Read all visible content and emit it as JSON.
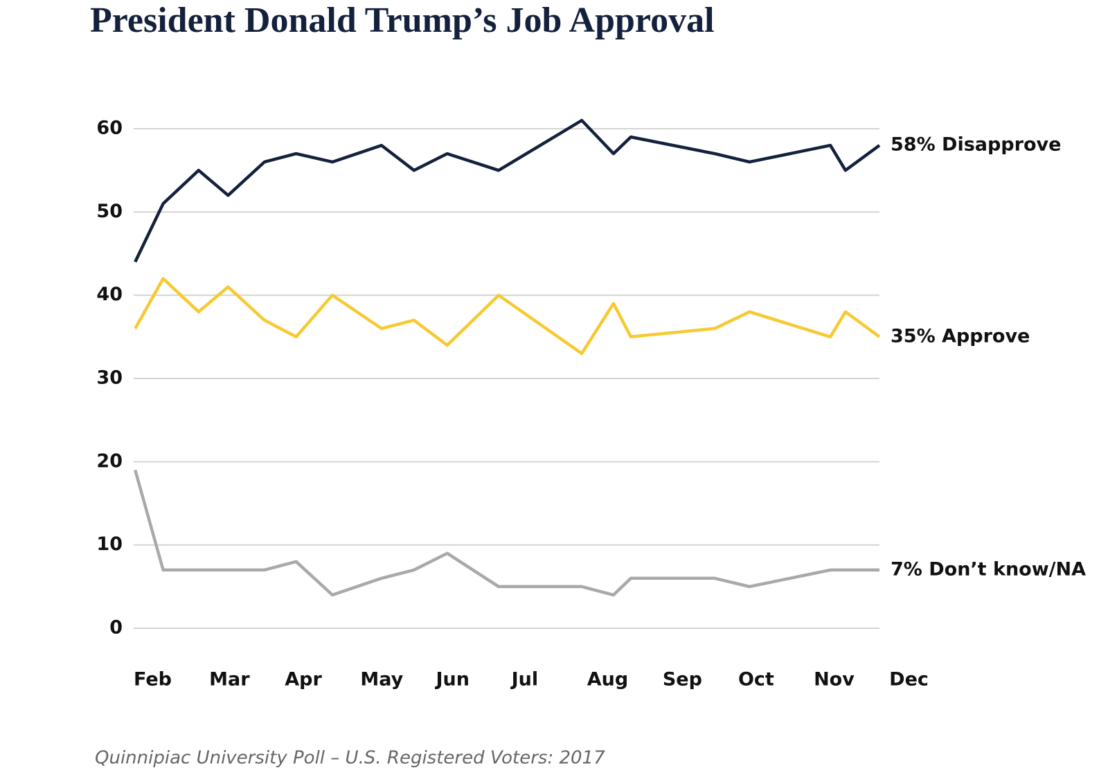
{
  "chart_data": {
    "type": "line",
    "title": "President Donald Trump’s Job Approval",
    "caption": "Quinnipiac University Poll – U.S. Registered Voters: 2017",
    "x": [
      2.02,
      2.39,
      2.86,
      3.25,
      3.73,
      4.15,
      4.63,
      5.28,
      5.71,
      6.15,
      6.83,
      7.93,
      8.35,
      8.58,
      9.69,
      10.15,
      11.22,
      11.42,
      11.87
    ],
    "xlim": [
      2,
      11.87
    ],
    "xticks": [
      {
        "value": 2,
        "label": "Feb"
      },
      {
        "value": 3,
        "label": "Mar"
      },
      {
        "value": 4,
        "label": "Apr"
      },
      {
        "value": 5,
        "label": "May"
      },
      {
        "value": 6,
        "label": "Jun"
      },
      {
        "value": 7,
        "label": "Jul"
      },
      {
        "value": 8,
        "label": "Aug"
      },
      {
        "value": 9,
        "label": "Sep"
      },
      {
        "value": 10,
        "label": "Oct"
      },
      {
        "value": 11,
        "label": "Nov"
      },
      {
        "value": 12,
        "label": "Dec"
      }
    ],
    "ylim": [
      0,
      60
    ],
    "yticks": [
      0,
      10,
      20,
      30,
      40,
      50,
      60
    ],
    "grid": true,
    "series": [
      {
        "name": "58% Disapprove",
        "color": "#14213d",
        "values": [
          44,
          51,
          55,
          52,
          56,
          57,
          56,
          58,
          55,
          57,
          55,
          61,
          57,
          59,
          57,
          56,
          58,
          55,
          58
        ]
      },
      {
        "name": "35% Approve",
        "color": "#f7c932",
        "values": [
          36,
          42,
          38,
          41,
          37,
          35,
          40,
          36,
          37,
          34,
          40,
          33,
          39,
          35,
          36,
          38,
          35,
          38,
          35
        ]
      },
      {
        "name": "7% Don’t know/NA",
        "color": "#a9a9a9",
        "values": [
          19,
          7,
          7,
          7,
          7,
          8,
          4,
          6,
          7,
          9,
          5,
          5,
          4,
          6,
          6,
          5,
          7,
          7,
          7
        ]
      }
    ]
  }
}
